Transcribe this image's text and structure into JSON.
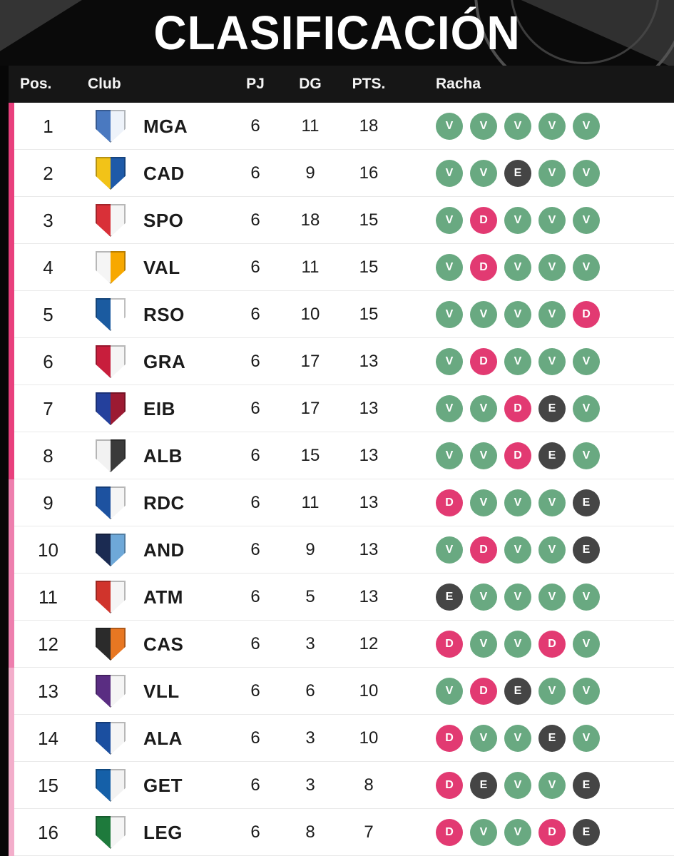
{
  "chart_data": {
    "type": "table",
    "title": "CLASIFICACIÓN",
    "columns": [
      "Pos.",
      "Club",
      "PJ",
      "DG",
      "PTS.",
      "Racha"
    ],
    "rows": [
      {
        "pos": 1,
        "club": "MGA",
        "pj": 6,
        "dg": 11,
        "pts": 18,
        "racha": [
          "V",
          "V",
          "V",
          "V",
          "V"
        ],
        "zone": "zone1",
        "crest": [
          "#4a79c0",
          "#eef3fa"
        ]
      },
      {
        "pos": 2,
        "club": "CAD",
        "pj": 6,
        "dg": 9,
        "pts": 16,
        "racha": [
          "V",
          "V",
          "E",
          "V",
          "V"
        ],
        "zone": "zone1",
        "crest": [
          "#f2c318",
          "#1e5aa8"
        ]
      },
      {
        "pos": 3,
        "club": "SPO",
        "pj": 6,
        "dg": 18,
        "pts": 15,
        "racha": [
          "V",
          "D",
          "V",
          "V",
          "V"
        ],
        "zone": "zone1",
        "crest": [
          "#d93038",
          "#f5f5f5"
        ]
      },
      {
        "pos": 4,
        "club": "VAL",
        "pj": 6,
        "dg": 11,
        "pts": 15,
        "racha": [
          "V",
          "D",
          "V",
          "V",
          "V"
        ],
        "zone": "zone1",
        "crest": [
          "#f5f5f5",
          "#f7a800"
        ]
      },
      {
        "pos": 5,
        "club": "RSO",
        "pj": 6,
        "dg": 10,
        "pts": 15,
        "racha": [
          "V",
          "V",
          "V",
          "V",
          "D"
        ],
        "zone": "zone1",
        "crest": [
          "#1b5ba0",
          "#ffffff"
        ]
      },
      {
        "pos": 6,
        "club": "GRA",
        "pj": 6,
        "dg": 17,
        "pts": 13,
        "racha": [
          "V",
          "D",
          "V",
          "V",
          "V"
        ],
        "zone": "zone1",
        "crest": [
          "#c81e3c",
          "#f5f5f5"
        ]
      },
      {
        "pos": 7,
        "club": "EIB",
        "pj": 6,
        "dg": 17,
        "pts": 13,
        "racha": [
          "V",
          "V",
          "D",
          "E",
          "V"
        ],
        "zone": "zone1",
        "crest": [
          "#24409c",
          "#9c1a32"
        ]
      },
      {
        "pos": 8,
        "club": "ALB",
        "pj": 6,
        "dg": 15,
        "pts": 13,
        "racha": [
          "V",
          "V",
          "D",
          "E",
          "V"
        ],
        "zone": "zone1",
        "crest": [
          "#f2f2f2",
          "#3a3a3a"
        ]
      },
      {
        "pos": 9,
        "club": "RDC",
        "pj": 6,
        "dg": 11,
        "pts": 13,
        "racha": [
          "D",
          "V",
          "V",
          "V",
          "E"
        ],
        "zone": "zone2",
        "crest": [
          "#1d52a0",
          "#f5f5f5"
        ]
      },
      {
        "pos": 10,
        "club": "AND",
        "pj": 6,
        "dg": 9,
        "pts": 13,
        "racha": [
          "V",
          "D",
          "V",
          "V",
          "E"
        ],
        "zone": "zone2",
        "crest": [
          "#1b2b52",
          "#6ea8d8"
        ]
      },
      {
        "pos": 11,
        "club": "ATM",
        "pj": 6,
        "dg": 5,
        "pts": 13,
        "racha": [
          "E",
          "V",
          "V",
          "V",
          "V"
        ],
        "zone": "zone2",
        "crest": [
          "#d0342c",
          "#f5f5f5"
        ]
      },
      {
        "pos": 12,
        "club": "CAS",
        "pj": 6,
        "dg": 3,
        "pts": 12,
        "racha": [
          "D",
          "V",
          "V",
          "D",
          "V"
        ],
        "zone": "zone2",
        "crest": [
          "#2b2b2b",
          "#e87722"
        ]
      },
      {
        "pos": 13,
        "club": "VLL",
        "pj": 6,
        "dg": 6,
        "pts": 10,
        "racha": [
          "V",
          "D",
          "E",
          "V",
          "V"
        ],
        "zone": "zone3",
        "crest": [
          "#5a2d82",
          "#f5f5f5"
        ]
      },
      {
        "pos": 14,
        "club": "ALA",
        "pj": 6,
        "dg": 3,
        "pts": 10,
        "racha": [
          "D",
          "V",
          "V",
          "E",
          "V"
        ],
        "zone": "zone3",
        "crest": [
          "#1b4fa0",
          "#f5f5f5"
        ]
      },
      {
        "pos": 15,
        "club": "GET",
        "pj": 6,
        "dg": 3,
        "pts": 8,
        "racha": [
          "D",
          "E",
          "V",
          "V",
          "E"
        ],
        "zone": "zone3",
        "crest": [
          "#1560a8",
          "#f2f2f2"
        ]
      },
      {
        "pos": 16,
        "club": "LEG",
        "pj": 6,
        "dg": 8,
        "pts": 7,
        "racha": [
          "D",
          "V",
          "V",
          "D",
          "E"
        ],
        "zone": "zone3",
        "crest": [
          "#1e7a3c",
          "#f5f5f5"
        ]
      }
    ]
  },
  "colors": {
    "win": "#69a981",
    "draw": "#454545",
    "loss": "#e23a72",
    "zone1": "#e9407d",
    "zone2": "#ee7fae",
    "zone3": "#f3aecb",
    "header_bg": "#161616",
    "band_bg": "#0a0a0a"
  }
}
